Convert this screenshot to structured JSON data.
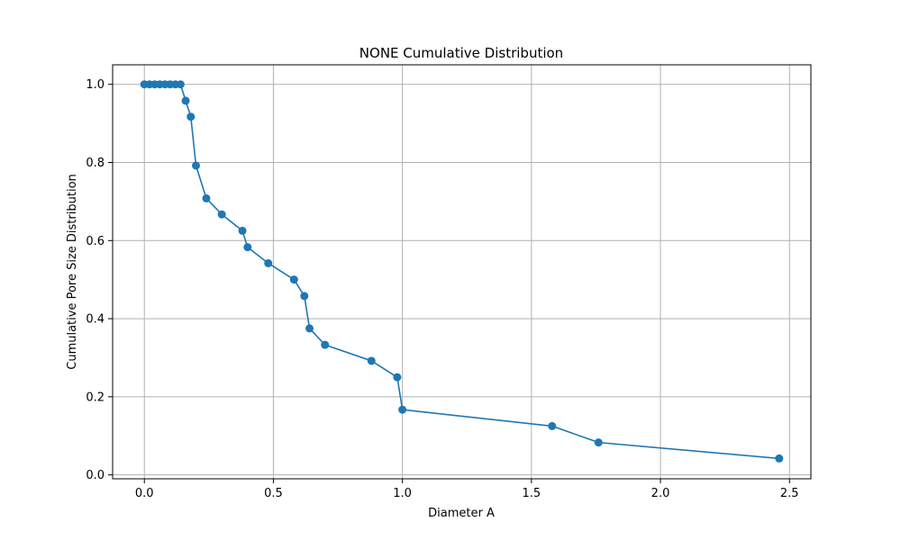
{
  "chart_data": {
    "type": "line",
    "title": "NONE Cumulative Distribution",
    "xlabel": "Diameter A",
    "ylabel": "Cumulative Pore Size Distribution",
    "xlim": [
      -0.123,
      2.583
    ],
    "ylim": [
      -0.01,
      1.05
    ],
    "grid": true,
    "xticks": [
      0.0,
      0.5,
      1.0,
      1.5,
      2.0,
      2.5
    ],
    "xtick_labels": [
      "0.0",
      "0.5",
      "1.0",
      "1.5",
      "2.0",
      "2.5"
    ],
    "yticks": [
      0.0,
      0.2,
      0.4,
      0.6,
      0.8,
      1.0
    ],
    "ytick_labels": [
      "0.0",
      "0.2",
      "0.4",
      "0.6",
      "0.8",
      "1.0"
    ],
    "series": [
      {
        "color": "#1f77b4",
        "marker": "circle",
        "x": [
          0.0,
          0.02,
          0.04,
          0.06,
          0.08,
          0.1,
          0.12,
          0.14,
          0.16,
          0.18,
          0.2,
          0.24,
          0.3,
          0.38,
          0.4,
          0.48,
          0.58,
          0.62,
          0.64,
          0.7,
          0.88,
          0.98,
          1.0,
          1.58,
          1.76,
          2.46
        ],
        "y": [
          1.0,
          1.0,
          1.0,
          1.0,
          1.0,
          1.0,
          1.0,
          1.0,
          0.958,
          0.917,
          0.792,
          0.708,
          0.667,
          0.625,
          0.583,
          0.542,
          0.5,
          0.458,
          0.375,
          0.333,
          0.292,
          0.25,
          0.167,
          0.125,
          0.083,
          0.042
        ]
      }
    ]
  }
}
